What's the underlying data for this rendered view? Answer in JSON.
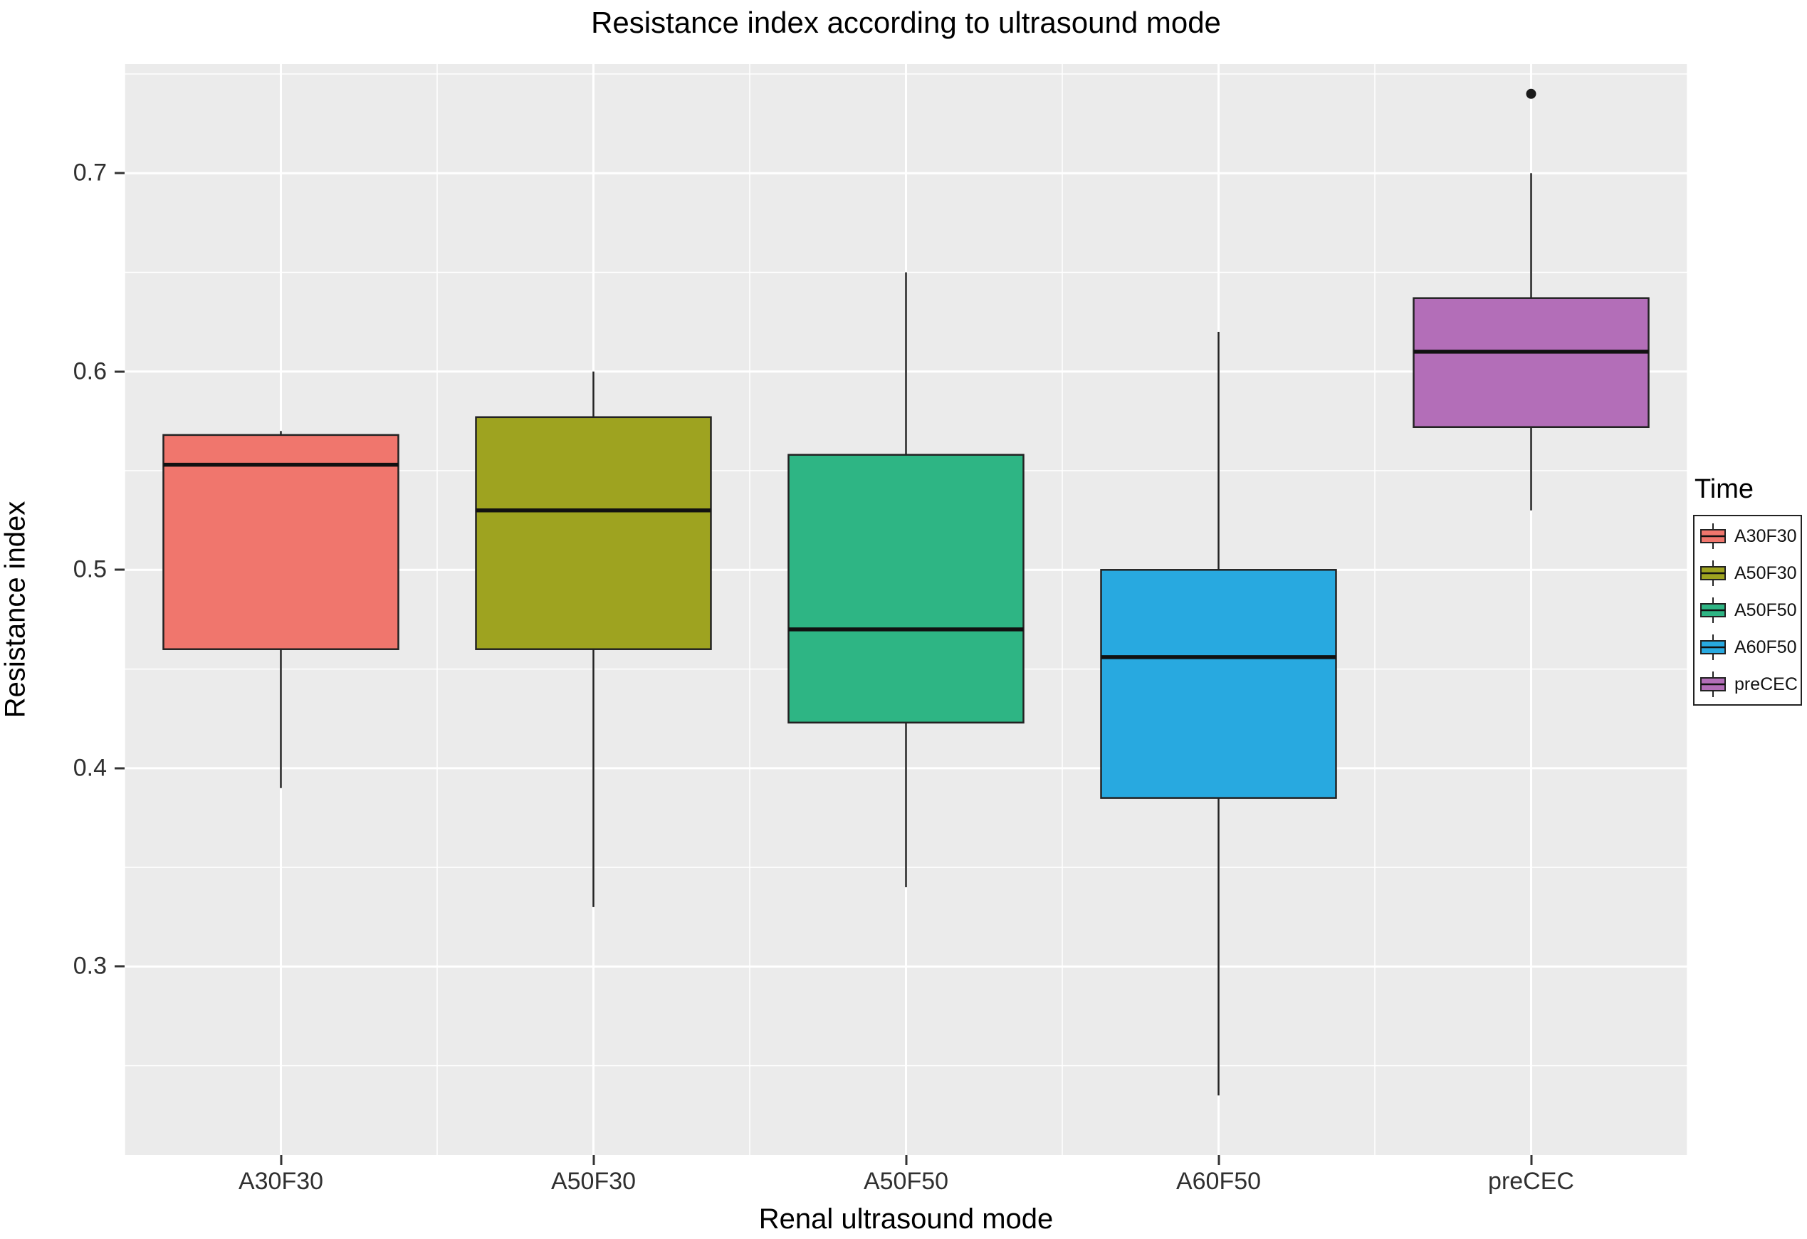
{
  "chart_data": {
    "type": "boxplot",
    "title": "Resistance index according to ultrasound mode",
    "xlabel": "Renal ultrasound mode",
    "ylabel": "Resistance index",
    "categories": [
      "A30F30",
      "A50F30",
      "A50F50",
      "A60F50",
      "preCEC"
    ],
    "y_ticks": [
      0.3,
      0.4,
      0.5,
      0.6,
      0.7
    ],
    "y_minor_ticks": [
      0.25,
      0.35,
      0.45,
      0.55,
      0.65,
      0.75
    ],
    "ylim": [
      0.205,
      0.755
    ],
    "panel_bg": "#EBEBEB",
    "grid_color": "#FFFFFF",
    "box_outline_color": "#222222",
    "legend": {
      "title": "Time",
      "entries": [
        "A30F30",
        "A50F30",
        "A50F50",
        "A60F50",
        "preCEC"
      ]
    },
    "series": [
      {
        "name": "A30F30",
        "color": "#F0766D",
        "whisker_low": 0.39,
        "q1": 0.46,
        "median": 0.553,
        "q3": 0.568,
        "whisker_high": 0.57,
        "outliers": []
      },
      {
        "name": "A50F30",
        "color": "#9EA320",
        "whisker_low": 0.33,
        "q1": 0.46,
        "median": 0.53,
        "q3": 0.577,
        "whisker_high": 0.6,
        "outliers": []
      },
      {
        "name": "A50F50",
        "color": "#2EB584",
        "whisker_low": 0.34,
        "q1": 0.423,
        "median": 0.47,
        "q3": 0.558,
        "whisker_high": 0.65,
        "outliers": []
      },
      {
        "name": "A60F50",
        "color": "#28A9E0",
        "whisker_low": 0.235,
        "q1": 0.385,
        "median": 0.456,
        "q3": 0.5,
        "whisker_high": 0.62,
        "outliers": []
      },
      {
        "name": "preCEC",
        "color": "#B36EB8",
        "whisker_low": 0.53,
        "q1": 0.572,
        "median": 0.61,
        "q3": 0.637,
        "whisker_high": 0.7,
        "outliers": [
          0.74
        ]
      }
    ]
  }
}
